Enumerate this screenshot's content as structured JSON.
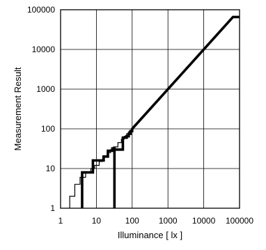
{
  "chart_data": {
    "type": "line",
    "xlabel": "Illuminance [ lx ]",
    "ylabel": "Measurement Result",
    "xscale": "log",
    "yscale": "log",
    "xlim": [
      1,
      100000
    ],
    "ylim": [
      1,
      100000
    ],
    "grid": true,
    "x_ticks": [
      1,
      10,
      100,
      1000,
      10000,
      100000
    ],
    "x_tick_labels": [
      "1",
      "10",
      "100",
      "1000",
      "10000",
      "100000"
    ],
    "y_ticks": [
      1,
      10,
      100,
      1000,
      10000,
      100000
    ],
    "y_tick_labels": [
      "1",
      "10",
      "100",
      "1000",
      "10000",
      "100000"
    ],
    "series": [
      {
        "style": "thin",
        "color": "#000000",
        "points": [
          [
            1.8,
            1
          ],
          [
            1.8,
            2
          ],
          [
            2.5,
            2
          ],
          [
            2.5,
            4
          ],
          [
            3.5,
            4
          ],
          [
            3.5,
            6
          ],
          [
            5,
            6
          ],
          [
            5,
            8
          ],
          [
            7,
            8
          ],
          [
            7,
            10
          ],
          [
            9,
            10
          ],
          [
            9,
            12
          ],
          [
            12,
            12
          ],
          [
            12,
            15
          ],
          [
            15,
            15
          ],
          [
            15,
            20
          ],
          [
            20,
            20
          ],
          [
            20,
            25
          ],
          [
            25,
            25
          ],
          [
            25,
            30
          ],
          [
            30,
            30
          ],
          [
            30,
            35
          ],
          [
            40,
            35
          ],
          [
            40,
            45
          ],
          [
            50,
            45
          ],
          [
            50,
            55
          ],
          [
            60,
            55
          ],
          [
            60,
            65
          ],
          [
            70,
            65
          ],
          [
            70,
            75
          ],
          [
            80,
            75
          ],
          [
            80,
            85
          ],
          [
            100,
            85
          ],
          [
            100,
            100
          ],
          [
            200,
            200
          ],
          [
            1000,
            1000
          ],
          [
            10000,
            10000
          ],
          [
            65535,
            65535
          ]
        ]
      },
      {
        "style": "thick",
        "color": "#000000",
        "points": [
          [
            4,
            1
          ],
          [
            4,
            8
          ],
          [
            8,
            8
          ],
          [
            8,
            16
          ],
          [
            16,
            16
          ],
          [
            16,
            20
          ],
          [
            21,
            20
          ],
          [
            21,
            28
          ],
          [
            28,
            28
          ],
          [
            28,
            32
          ],
          [
            32,
            32
          ],
          [
            32,
            1
          ],
          [
            32,
            30
          ],
          [
            55,
            30
          ],
          [
            55,
            60
          ],
          [
            70,
            60
          ],
          [
            70,
            65
          ],
          [
            80,
            65
          ],
          [
            80,
            75
          ],
          [
            90,
            75
          ],
          [
            90,
            88
          ],
          [
            100,
            88
          ],
          [
            100,
            100
          ],
          [
            1000,
            1000
          ],
          [
            10000,
            10000
          ],
          [
            65535,
            65535
          ],
          [
            100000,
            65535
          ]
        ]
      }
    ]
  }
}
